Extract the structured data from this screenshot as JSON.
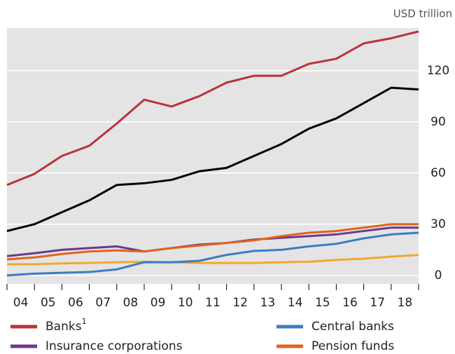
{
  "chart_data": {
    "type": "line",
    "unit_label": "USD trillion",
    "x": [
      0,
      1,
      2,
      3,
      4,
      5,
      6,
      7,
      8,
      9,
      10,
      11,
      12,
      13,
      14,
      15
    ],
    "xlim": [
      0,
      15
    ],
    "xticks": [
      {
        "value": 0.5,
        "label": "04"
      },
      {
        "value": 1.5,
        "label": "05"
      },
      {
        "value": 2.5,
        "label": "06"
      },
      {
        "value": 3.5,
        "label": "07"
      },
      {
        "value": 4.5,
        "label": "08"
      },
      {
        "value": 5.5,
        "label": "09"
      },
      {
        "value": 6.5,
        "label": "10"
      },
      {
        "value": 7.5,
        "label": "11"
      },
      {
        "value": 8.5,
        "label": "12"
      },
      {
        "value": 9.5,
        "label": "13"
      },
      {
        "value": 10.5,
        "label": "14"
      },
      {
        "value": 11.5,
        "label": "15"
      },
      {
        "value": 12.5,
        "label": "16"
      },
      {
        "value": 13.5,
        "label": "17"
      },
      {
        "value": 14.5,
        "label": "18"
      }
    ],
    "ylim": [
      -5,
      145
    ],
    "yticks": [
      0,
      30,
      60,
      90,
      120
    ],
    "grid": true,
    "series": [
      {
        "color": "#000000",
        "values": [
          26,
          30,
          37,
          44,
          53,
          54,
          56,
          61,
          63,
          70,
          77,
          86,
          92,
          101,
          110,
          109
        ]
      },
      {
        "color": "#f2a830",
        "values": [
          6.5,
          6.5,
          7,
          7.3,
          7.7,
          8,
          7.7,
          7.3,
          7.3,
          7.3,
          7.7,
          8,
          9,
          9.8,
          11,
          12
        ]
      },
      {
        "name": "Banks",
        "footnote": "1",
        "color": "#b8333a",
        "values": [
          53,
          59.5,
          70,
          76,
          89,
          103,
          99,
          105,
          113,
          117,
          117,
          124,
          127,
          136,
          139,
          143
        ]
      },
      {
        "name": "Central banks",
        "color": "#3a7cc4",
        "values": [
          0,
          1,
          1.5,
          2,
          3.5,
          7.7,
          7.7,
          8.5,
          12,
          14.3,
          15,
          17,
          18.5,
          21.7,
          24,
          25
        ]
      },
      {
        "name": "Insurance corporations",
        "color": "#6a3a8c",
        "values": [
          11.3,
          13,
          15,
          16,
          17,
          14,
          16,
          18,
          19,
          21,
          22,
          23,
          24,
          26,
          28,
          28
        ]
      },
      {
        "name": "Pension funds",
        "color": "#e0641c",
        "values": [
          9.4,
          10.5,
          12.5,
          14,
          14.6,
          14,
          16,
          17.5,
          19,
          20.5,
          23,
          25,
          26,
          28,
          30,
          30
        ]
      }
    ]
  }
}
